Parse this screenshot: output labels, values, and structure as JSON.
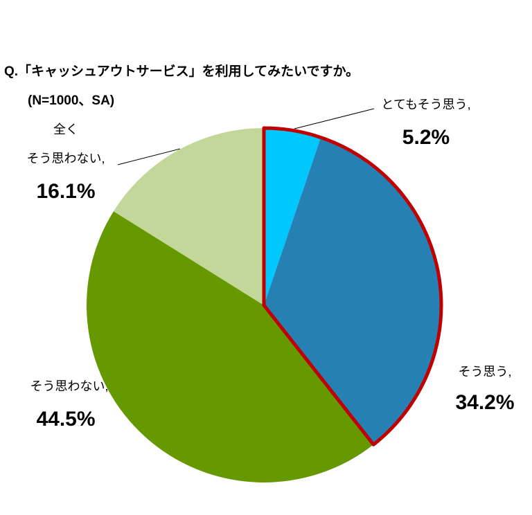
{
  "chart_data": {
    "type": "pie",
    "title": "Q.「キャッシュアウトサービス」を利用してみたいですか。",
    "subtitle": "(N=1000、SA)",
    "categories": [
      "とてもそう思う,",
      "そう思う,",
      "そう思わない,",
      "全く\nそう思わない,"
    ],
    "values": [
      5.2,
      34.2,
      44.5,
      16.1
    ],
    "value_labels": [
      "5.2%",
      "34.2%",
      "44.5%",
      "16.1%"
    ],
    "colors": [
      "#00c8ff",
      "#2680b4",
      "#669900",
      "#c4d79b"
    ],
    "highlight": {
      "slices": [
        0,
        1
      ],
      "color": "#c00000"
    }
  }
}
